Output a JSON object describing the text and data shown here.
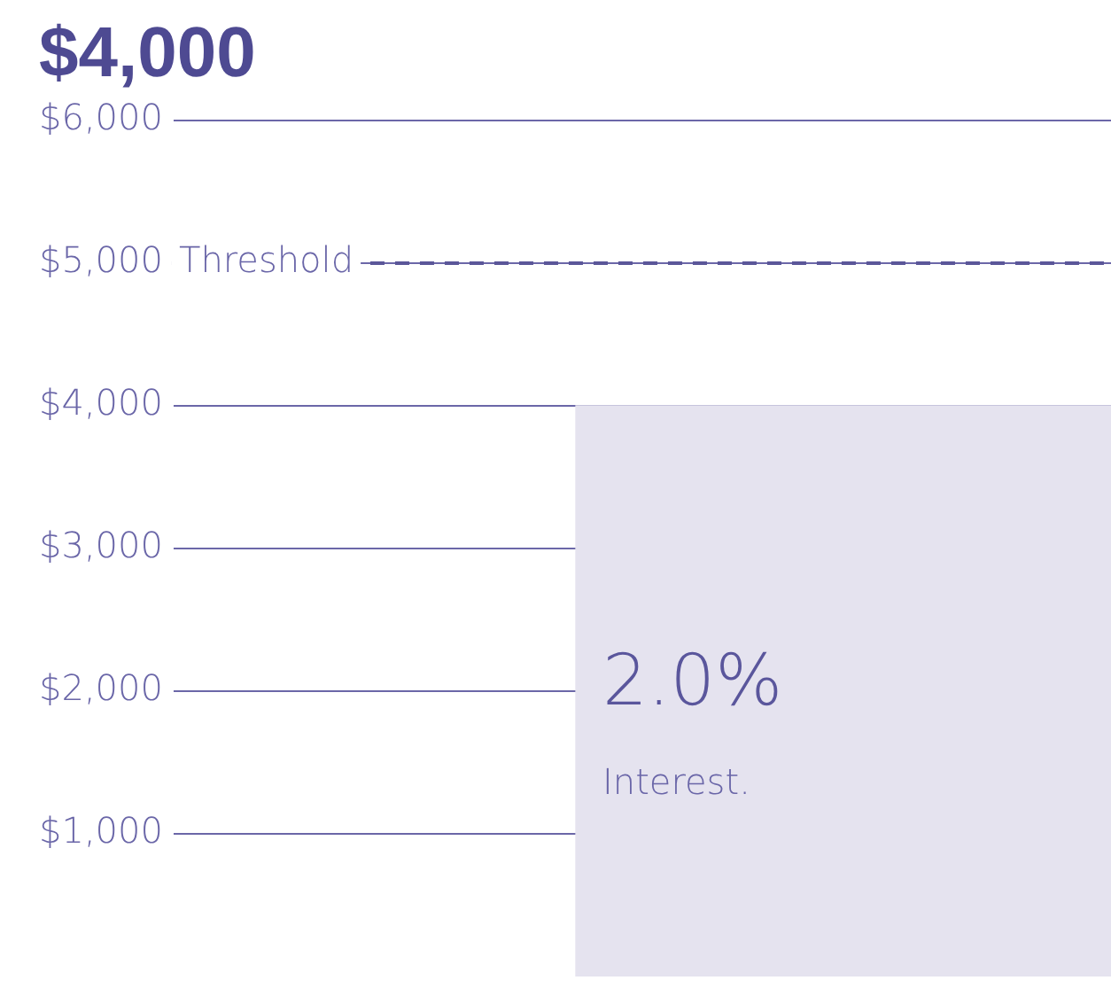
{
  "chart_data": {
    "type": "bar",
    "title": "$4,000",
    "categories": [
      null,
      null
    ],
    "values": [
      null,
      4000
    ],
    "color": "#e5e3ef",
    "ylim": [
      0,
      6000
    ],
    "yticks": [
      {
        "value": 1000,
        "label": "$1,000"
      },
      {
        "value": 2000,
        "label": "$2,000"
      },
      {
        "value": 3000,
        "label": "$3,000"
      },
      {
        "value": 4000,
        "label": "$4,000"
      },
      {
        "value": 5000,
        "label": "$5,000"
      },
      {
        "value": 6000,
        "label": "$6,000"
      }
    ],
    "grid": "y",
    "ref_lines": [
      {
        "axis": "y",
        "value": 5000,
        "label": "Threshold",
        "color": "#5b5799",
        "line_style": "dashed"
      }
    ],
    "annotations": [
      "2.0%",
      "Interest."
    ]
  }
}
